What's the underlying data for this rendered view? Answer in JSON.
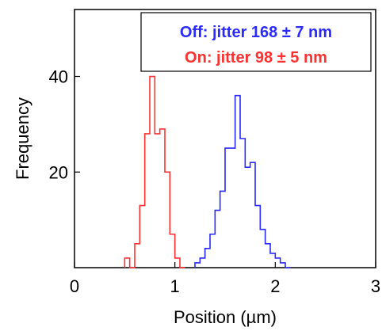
{
  "chart_data": {
    "type": "histogram",
    "xlabel": "Position (µm)",
    "ylabel": "Frequency",
    "xlim": [
      0,
      3
    ],
    "ylim": [
      0,
      54
    ],
    "x_ticks": [
      {
        "value": 0,
        "label": "0"
      },
      {
        "value": 1,
        "label": "1"
      },
      {
        "value": 2,
        "label": "2"
      },
      {
        "value": 3,
        "label": "3"
      }
    ],
    "y_ticks": [
      {
        "value": 20,
        "label": "20"
      },
      {
        "value": 40,
        "label": "40"
      }
    ],
    "grid": false,
    "legend_position": "top-right",
    "series": [
      {
        "name": "Off: jitter 168 ± 7 nm",
        "color": "#2a2aff",
        "bin_width": 0.05,
        "bin_starts": [
          1.2,
          1.25,
          1.3,
          1.35,
          1.4,
          1.45,
          1.5,
          1.55,
          1.6,
          1.65,
          1.7,
          1.75,
          1.8,
          1.85,
          1.9,
          1.95,
          2.0,
          2.05,
          2.1
        ],
        "counts": [
          1,
          2,
          4,
          7,
          12,
          16,
          25,
          25,
          36,
          27,
          21,
          22,
          13,
          8,
          5,
          3,
          2,
          1,
          0
        ]
      },
      {
        "name": "On: jitter 98 ± 5 nm",
        "color": "#ff3030",
        "bin_width": 0.05,
        "bin_starts": [
          0.5,
          0.55,
          0.6,
          0.65,
          0.7,
          0.75,
          0.8,
          0.85,
          0.9,
          0.95,
          1.0,
          1.05
        ],
        "counts": [
          2,
          0,
          5,
          13,
          28,
          40,
          28,
          29,
          20,
          7,
          2,
          0
        ]
      }
    ]
  }
}
